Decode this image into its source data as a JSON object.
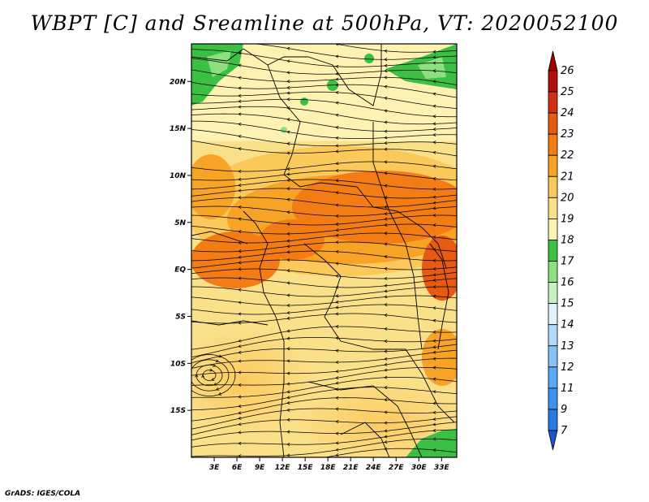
{
  "title": "WBPT [C] and Sreamline at 500hPa, VT: 2020052100",
  "footer": "GrADS: IGES/COLA",
  "map": {
    "lon_range": [
      0,
      35
    ],
    "lat_range": [
      -20,
      24
    ],
    "lat_ticks": [
      {
        "value": 20,
        "label": "20N"
      },
      {
        "value": 15,
        "label": "15N"
      },
      {
        "value": 10,
        "label": "10N"
      },
      {
        "value": 5,
        "label": "5N"
      },
      {
        "value": 0,
        "label": "EQ"
      },
      {
        "value": -5,
        "label": "5S"
      },
      {
        "value": -10,
        "label": "10S"
      },
      {
        "value": -15,
        "label": "15S"
      }
    ],
    "lon_ticks": [
      {
        "value": 3,
        "label": "3E"
      },
      {
        "value": 6,
        "label": "6E"
      },
      {
        "value": 9,
        "label": "9E"
      },
      {
        "value": 12,
        "label": "12E"
      },
      {
        "value": 15,
        "label": "15E"
      },
      {
        "value": 18,
        "label": "18E"
      },
      {
        "value": 21,
        "label": "21E"
      },
      {
        "value": 24,
        "label": "24E"
      },
      {
        "value": 27,
        "label": "27E"
      },
      {
        "value": 30,
        "label": "30E"
      },
      {
        "value": 33,
        "label": "33E"
      }
    ]
  },
  "colorbar": {
    "levels": [
      {
        "label": "7",
        "color": "#1f63d6"
      },
      {
        "label": "9",
        "color": "#2a7ae6"
      },
      {
        "label": "11",
        "color": "#3d92f0"
      },
      {
        "label": "12",
        "color": "#5aa9f5"
      },
      {
        "label": "13",
        "color": "#86c4f8"
      },
      {
        "label": "14",
        "color": "#b3dafb"
      },
      {
        "label": "15",
        "color": "#e1f3fd"
      },
      {
        "label": "16",
        "color": "#c8f0c0"
      },
      {
        "label": "17",
        "color": "#8de07e"
      },
      {
        "label": "18",
        "color": "#3cc043"
      },
      {
        "label": "19",
        "color": "#fdf2b2"
      },
      {
        "label": "20",
        "color": "#fbe08a"
      },
      {
        "label": "21",
        "color": "#fbc85a"
      },
      {
        "label": "22",
        "color": "#f7a326"
      },
      {
        "label": "23",
        "color": "#f37d14"
      },
      {
        "label": "24",
        "color": "#e65a12"
      },
      {
        "label": "25",
        "color": "#d32f14"
      },
      {
        "label": "26",
        "color": "#b30f0f"
      }
    ],
    "top_arrow_color": "#a30000",
    "bottom_arrow_color": "#1b55d3"
  }
}
